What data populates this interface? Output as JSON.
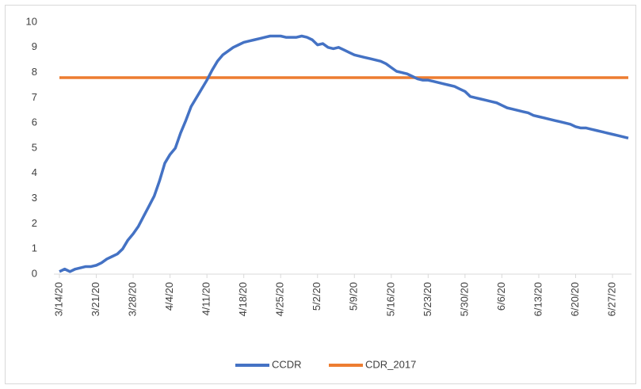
{
  "chart_data": {
    "type": "line",
    "categories": [
      "3/14/20",
      null,
      null,
      null,
      null,
      null,
      null,
      "3/21/20",
      null,
      null,
      null,
      null,
      null,
      null,
      "3/28/20",
      null,
      null,
      null,
      null,
      null,
      null,
      "4/4/20",
      null,
      null,
      null,
      null,
      null,
      null,
      "4/11/20",
      null,
      null,
      null,
      null,
      null,
      null,
      "4/18/20",
      null,
      null,
      null,
      null,
      null,
      null,
      "4/25/20",
      null,
      null,
      null,
      null,
      null,
      null,
      "5/2/20",
      null,
      null,
      null,
      null,
      null,
      null,
      "5/9/20",
      null,
      null,
      null,
      null,
      null,
      null,
      "5/16/20",
      null,
      null,
      null,
      null,
      null,
      null,
      "5/23/20",
      null,
      null,
      null,
      null,
      null,
      null,
      "5/30/20",
      null,
      null,
      null,
      null,
      null,
      null,
      "6/6/20",
      null,
      null,
      null,
      null,
      null,
      null,
      "6/13/20",
      null,
      null,
      null,
      null,
      null,
      null,
      "6/20/20",
      null,
      null,
      null,
      null,
      null,
      null,
      "6/27/20",
      null,
      null,
      null
    ],
    "series": [
      {
        "name": "CCDR",
        "color": "#4472c4",
        "values": [
          0.1,
          0.2,
          0.1,
          0.2,
          0.25,
          0.3,
          0.3,
          0.35,
          0.45,
          0.6,
          0.7,
          0.8,
          1.0,
          1.35,
          1.6,
          1.9,
          2.3,
          2.7,
          3.1,
          3.7,
          4.4,
          4.75,
          5.0,
          5.6,
          6.1,
          6.65,
          7.0,
          7.35,
          7.7,
          8.1,
          8.45,
          8.7,
          8.85,
          9.0,
          9.1,
          9.2,
          9.25,
          9.3,
          9.35,
          9.4,
          9.45,
          9.45,
          9.45,
          9.4,
          9.4,
          9.4,
          9.45,
          9.4,
          9.3,
          9.1,
          9.15,
          9.0,
          8.95,
          9.0,
          8.9,
          8.8,
          8.7,
          8.65,
          8.6,
          8.55,
          8.5,
          8.45,
          8.35,
          8.2,
          8.05,
          8.0,
          7.95,
          7.85,
          7.75,
          7.7,
          7.7,
          7.65,
          7.6,
          7.55,
          7.5,
          7.45,
          7.35,
          7.25,
          7.05,
          7.0,
          6.95,
          6.9,
          6.85,
          6.8,
          6.7,
          6.6,
          6.55,
          6.5,
          6.45,
          6.4,
          6.3,
          6.25,
          6.2,
          6.15,
          6.1,
          6.05,
          6.0,
          5.95,
          5.85,
          5.8,
          5.8,
          5.75,
          5.7,
          5.65,
          5.6,
          5.55,
          5.5,
          5.45,
          5.4
        ]
      },
      {
        "name": "CDR_2017",
        "color": "#ed7d31",
        "values": [
          7.8,
          7.8,
          7.8,
          7.8,
          7.8,
          7.8,
          7.8,
          7.8,
          7.8,
          7.8,
          7.8,
          7.8,
          7.8,
          7.8,
          7.8,
          7.8,
          7.8,
          7.8,
          7.8,
          7.8,
          7.8,
          7.8,
          7.8,
          7.8,
          7.8,
          7.8,
          7.8,
          7.8,
          7.8,
          7.8,
          7.8,
          7.8,
          7.8,
          7.8,
          7.8,
          7.8,
          7.8,
          7.8,
          7.8,
          7.8,
          7.8,
          7.8,
          7.8,
          7.8,
          7.8,
          7.8,
          7.8,
          7.8,
          7.8,
          7.8,
          7.8,
          7.8,
          7.8,
          7.8,
          7.8,
          7.8,
          7.8,
          7.8,
          7.8,
          7.8,
          7.8,
          7.8,
          7.8,
          7.8,
          7.8,
          7.8,
          7.8,
          7.8,
          7.8,
          7.8,
          7.8,
          7.8,
          7.8,
          7.8,
          7.8,
          7.8,
          7.8,
          7.8,
          7.8,
          7.8,
          7.8,
          7.8,
          7.8,
          7.8,
          7.8,
          7.8,
          7.8,
          7.8,
          7.8,
          7.8,
          7.8,
          7.8,
          7.8,
          7.8,
          7.8,
          7.8,
          7.8,
          7.8,
          7.8,
          7.8,
          7.8,
          7.8,
          7.8,
          7.8,
          7.8,
          7.8,
          7.8,
          7.8,
          7.8
        ]
      }
    ],
    "ylim": [
      0,
      10
    ],
    "yticks": [
      0,
      1,
      2,
      3,
      4,
      5,
      6,
      7,
      8,
      9,
      10
    ],
    "grid": false,
    "legend": "bottom"
  }
}
